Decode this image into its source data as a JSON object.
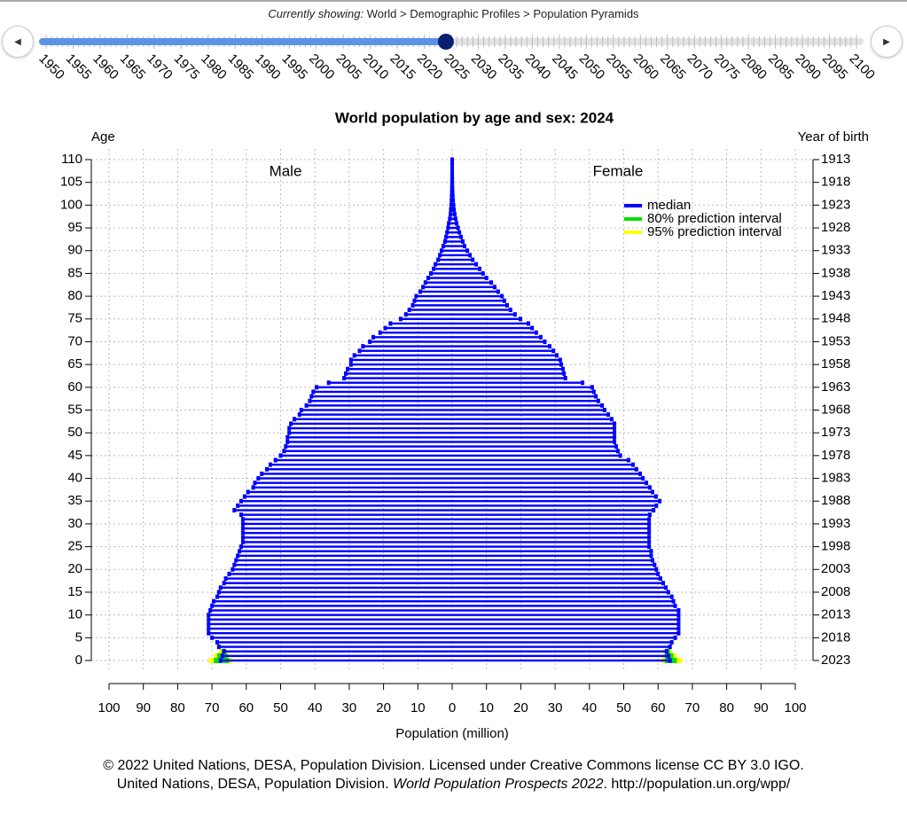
{
  "header": {
    "prefix": "Currently showing:",
    "path": "World > Demographic Profiles > Population Pyramids"
  },
  "timeline": {
    "years": [
      1950,
      1955,
      1960,
      1965,
      1970,
      1975,
      1980,
      1985,
      1990,
      1995,
      2000,
      2005,
      2010,
      2015,
      2020,
      2025,
      2030,
      2035,
      2040,
      2045,
      2050,
      2055,
      2060,
      2065,
      2070,
      2075,
      2080,
      2085,
      2090,
      2095,
      2100
    ],
    "current": 2024
  },
  "chart_data": {
    "type": "pyramid",
    "title": "World population by age and sex: 2024",
    "ylabel": "Age",
    "y2label": "Year of birth",
    "xlabel": "Population (million)",
    "ylim": [
      0,
      110
    ],
    "yticks": [
      0,
      5,
      10,
      15,
      20,
      25,
      30,
      35,
      40,
      45,
      50,
      55,
      60,
      65,
      70,
      75,
      80,
      85,
      90,
      95,
      100,
      105,
      110
    ],
    "y2ticks": [
      {
        "value": 0,
        "label": "2023"
      },
      {
        "value": 5,
        "label": "2018"
      },
      {
        "value": 10,
        "label": "2013"
      },
      {
        "value": 15,
        "label": "2008"
      },
      {
        "value": 20,
        "label": "2003"
      },
      {
        "value": 25,
        "label": "1998"
      },
      {
        "value": 30,
        "label": "1993"
      },
      {
        "value": 35,
        "label": "1988"
      },
      {
        "value": 40,
        "label": "1983"
      },
      {
        "value": 45,
        "label": "1978"
      },
      {
        "value": 50,
        "label": "1973"
      },
      {
        "value": 55,
        "label": "1968"
      },
      {
        "value": 60,
        "label": "1963"
      },
      {
        "value": 65,
        "label": "1958"
      },
      {
        "value": 70,
        "label": "1953"
      },
      {
        "value": 75,
        "label": "1948"
      },
      {
        "value": 80,
        "label": "1943"
      },
      {
        "value": 85,
        "label": "1938"
      },
      {
        "value": 90,
        "label": "1933"
      },
      {
        "value": 95,
        "label": "1928"
      },
      {
        "value": 100,
        "label": "1923"
      },
      {
        "value": 105,
        "label": "1918"
      },
      {
        "value": 110,
        "label": "1913"
      }
    ],
    "xlim": [
      -100,
      100
    ],
    "xticks": [
      {
        "value": -100,
        "label": "100"
      },
      {
        "value": -90,
        "label": "90"
      },
      {
        "value": -80,
        "label": "80"
      },
      {
        "value": -70,
        "label": "70"
      },
      {
        "value": -60,
        "label": "60"
      },
      {
        "value": -50,
        "label": "50"
      },
      {
        "value": -40,
        "label": "40"
      },
      {
        "value": -30,
        "label": "30"
      },
      {
        "value": -20,
        "label": "20"
      },
      {
        "value": -10,
        "label": "10"
      },
      0,
      10,
      20,
      30,
      40,
      50,
      60,
      70,
      80,
      90,
      100
    ],
    "grid": true,
    "median": {
      "name": "median",
      "color": "#0000ff"
    },
    "series": [
      {
        "name": "Male",
        "color": "#0000ff",
        "values": [
          67.5,
          67,
          66.5,
          68,
          68.5,
          70,
          71,
          71,
          71,
          71,
          71,
          70.5,
          70,
          69.5,
          68.5,
          68,
          67.5,
          66.5,
          66,
          65,
          64,
          63.5,
          63,
          62.5,
          62,
          61.5,
          61,
          61,
          61,
          61,
          61,
          61,
          61.5,
          63.5,
          62.5,
          61.5,
          60.5,
          59.5,
          58,
          57.5,
          56.5,
          55.5,
          54,
          53,
          51.5,
          50,
          49,
          48.5,
          48,
          48,
          47.5,
          47.5,
          47,
          46,
          44.5,
          44,
          42.5,
          41.5,
          41,
          40.5,
          39.5,
          36,
          31.5,
          31,
          30.5,
          29.5,
          29.5,
          28.5,
          27,
          26,
          24,
          23,
          21,
          19.5,
          18,
          15,
          13.5,
          12.5,
          11.5,
          11,
          10.5,
          9.3,
          8.5,
          7.8,
          7,
          6.2,
          5.4,
          4.9,
          4.1,
          3.6,
          3.1,
          2.6,
          2.1,
          1.8,
          1.5,
          1.2,
          1,
          0.7,
          0.5,
          0.4,
          0.3,
          0.2,
          0.15,
          0.1,
          0.07,
          0.05,
          0.03,
          0.02,
          0.01,
          0.01,
          0.01
        ]
      },
      {
        "name": "Female",
        "color": "#0000ff",
        "values": [
          63.5,
          63,
          62.5,
          63.5,
          64,
          65,
          66,
          66,
          66,
          66,
          66,
          66,
          65,
          64.5,
          64,
          63,
          62.3,
          61.5,
          60.7,
          60,
          59.5,
          59,
          58.4,
          58,
          58,
          57.4,
          57.4,
          57.4,
          57.4,
          57.4,
          57.4,
          57.4,
          57.6,
          58.7,
          59.5,
          60.5,
          59.4,
          58.4,
          57.6,
          56.6,
          55.6,
          54.8,
          53.7,
          52.7,
          51.4,
          49,
          48.3,
          47.8,
          47.3,
          47.3,
          47.3,
          47.3,
          47.3,
          46.5,
          45.5,
          44.4,
          43.7,
          42.6,
          41.9,
          41.3,
          40.8,
          38,
          33,
          32.6,
          32.3,
          31.8,
          31.5,
          30.5,
          29.5,
          28.4,
          27,
          25.8,
          24.5,
          23.3,
          22.2,
          19.9,
          18.3,
          17,
          16,
          15.2,
          14.5,
          13.4,
          12.4,
          11.4,
          10,
          9,
          8,
          7,
          6,
          5.2,
          4.4,
          3.6,
          3.1,
          2.6,
          2.1,
          1.7,
          1.3,
          1,
          0.75,
          0.55,
          0.4,
          0.28,
          0.19,
          0.12,
          0.08,
          0.05,
          0.03,
          0.02,
          0.01,
          0.01,
          0.01
        ]
      }
    ],
    "intervals": [
      {
        "name": "95% prediction interval",
        "color": "#ffff00",
        "ages": [
          0,
          1,
          2
        ],
        "male": [
          [
            64,
            71
          ],
          [
            65,
            69.5
          ],
          [
            65.5,
            68
          ]
        ],
        "female": [
          [
            61,
            67
          ],
          [
            61.5,
            65.5
          ],
          [
            61.5,
            64
          ]
        ]
      },
      {
        "name": "80% prediction interval",
        "color": "#00e000",
        "ages": [
          0,
          1,
          2
        ],
        "male": [
          [
            65,
            69.5
          ],
          [
            65.5,
            68.5
          ],
          [
            66,
            67.2
          ]
        ],
        "female": [
          [
            62,
            65.5
          ],
          [
            62,
            64.5
          ],
          [
            62,
            63.5
          ]
        ]
      }
    ]
  },
  "footer": {
    "line1": "© 2022 United Nations, DESA, Population Division. Licensed under Creative Commons license CC BY 3.0 IGO.",
    "line2_a": "United Nations, DESA, Population Division.",
    "line2_b": "World Population Prospects 2022",
    "line2_c": ". http://population.un.org/wpp/"
  }
}
